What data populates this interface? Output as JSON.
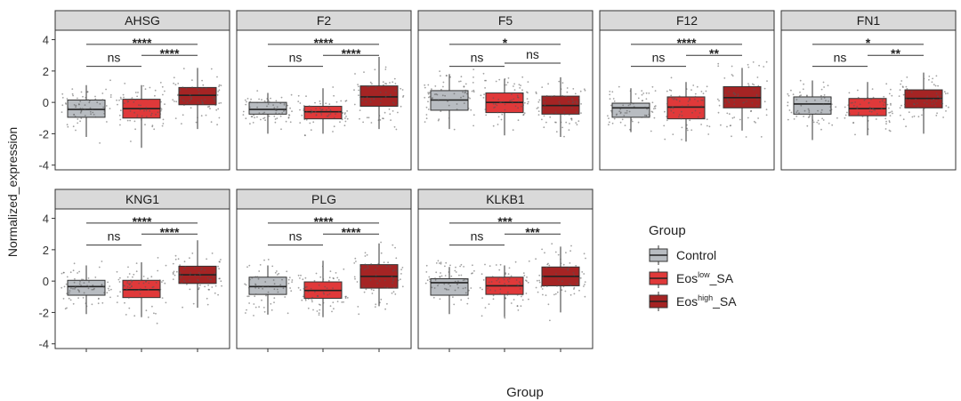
{
  "chart_data": {
    "type": "boxplot",
    "ylabel": "Normalized_expression",
    "xlabel": "Group",
    "ylim": [
      -4.3,
      4.6
    ],
    "yticks": [
      -4,
      -2,
      0,
      2,
      4
    ],
    "legend": {
      "title": "Group",
      "position": "right",
      "entries": [
        {
          "name": "Control",
          "base": "Control",
          "sup": "",
          "suffix": "",
          "color": "#b8bcc1"
        },
        {
          "name": "Eos_low_SA",
          "base": "Eos",
          "sup": "low",
          "suffix": "_SA",
          "color": "#e0393a"
        },
        {
          "name": "Eos_high_SA",
          "base": "Eos",
          "sup": "high",
          "suffix": "_SA",
          "color": "#a52424"
        }
      ]
    },
    "panels": [
      {
        "title": "AHSG",
        "boxes": [
          {
            "group": "Control",
            "q1": -0.95,
            "median": -0.45,
            "q3": 0.15,
            "wmin": -2.2,
            "wmax": 1.1
          },
          {
            "group": "Eos_low_SA",
            "q1": -1.0,
            "median": -0.4,
            "q3": 0.2,
            "wmin": -2.9,
            "wmax": 1.1
          },
          {
            "group": "Eos_high_SA",
            "q1": -0.15,
            "median": 0.45,
            "q3": 0.95,
            "wmin": -1.7,
            "wmax": 2.2
          }
        ],
        "signif": [
          {
            "label": "****",
            "from": 0,
            "to": 2,
            "y": 3.7
          },
          {
            "label": "ns",
            "from": 0,
            "to": 1,
            "y": 2.3
          },
          {
            "label": "****",
            "from": 1,
            "to": 2,
            "y": 3.0
          }
        ]
      },
      {
        "title": "F2",
        "boxes": [
          {
            "group": "Control",
            "q1": -0.75,
            "median": -0.45,
            "q3": 0.0,
            "wmin": -2.0,
            "wmax": 0.6
          },
          {
            "group": "Eos_low_SA",
            "q1": -1.05,
            "median": -0.6,
            "q3": -0.25,
            "wmin": -2.0,
            "wmax": 0.9
          },
          {
            "group": "Eos_high_SA",
            "q1": -0.25,
            "median": 0.35,
            "q3": 1.05,
            "wmin": -1.7,
            "wmax": 2.9
          }
        ],
        "signif": [
          {
            "label": "****",
            "from": 0,
            "to": 2,
            "y": 3.7
          },
          {
            "label": "ns",
            "from": 0,
            "to": 1,
            "y": 2.3
          },
          {
            "label": "****",
            "from": 1,
            "to": 2,
            "y": 3.0
          }
        ]
      },
      {
        "title": "F5",
        "boxes": [
          {
            "group": "Control",
            "q1": -0.5,
            "median": 0.15,
            "q3": 0.75,
            "wmin": -1.7,
            "wmax": 1.8
          },
          {
            "group": "Eos_low_SA",
            "q1": -0.65,
            "median": 0.0,
            "q3": 0.6,
            "wmin": -2.1,
            "wmax": 1.5
          },
          {
            "group": "Eos_high_SA",
            "q1": -0.75,
            "median": -0.2,
            "q3": 0.4,
            "wmin": -2.2,
            "wmax": 1.6
          }
        ],
        "signif": [
          {
            "label": "*",
            "from": 0,
            "to": 2,
            "y": 3.7
          },
          {
            "label": "ns",
            "from": 0,
            "to": 1,
            "y": 2.3
          },
          {
            "label": "ns",
            "from": 1,
            "to": 2,
            "y": 2.5
          }
        ]
      },
      {
        "title": "F12",
        "boxes": [
          {
            "group": "Control",
            "q1": -0.95,
            "median": -0.35,
            "q3": -0.05,
            "wmin": -1.9,
            "wmax": 0.9
          },
          {
            "group": "Eos_low_SA",
            "q1": -1.05,
            "median": -0.3,
            "q3": 0.35,
            "wmin": -2.5,
            "wmax": 1.3
          },
          {
            "group": "Eos_high_SA",
            "q1": -0.35,
            "median": 0.3,
            "q3": 1.0,
            "wmin": -1.8,
            "wmax": 2.2
          }
        ],
        "signif": [
          {
            "label": "****",
            "from": 0,
            "to": 2,
            "y": 3.7
          },
          {
            "label": "ns",
            "from": 0,
            "to": 1,
            "y": 2.3
          },
          {
            "label": "**",
            "from": 1,
            "to": 2,
            "y": 3.0
          }
        ]
      },
      {
        "title": "FN1",
        "boxes": [
          {
            "group": "Control",
            "q1": -0.75,
            "median": -0.1,
            "q3": 0.35,
            "wmin": -2.4,
            "wmax": 1.4
          },
          {
            "group": "Eos_low_SA",
            "q1": -0.85,
            "median": -0.4,
            "q3": 0.25,
            "wmin": -2.1,
            "wmax": 1.3
          },
          {
            "group": "Eos_high_SA",
            "q1": -0.35,
            "median": 0.25,
            "q3": 0.8,
            "wmin": -2.0,
            "wmax": 1.9
          }
        ],
        "signif": [
          {
            "label": "*",
            "from": 0,
            "to": 2,
            "y": 3.7
          },
          {
            "label": "ns",
            "from": 0,
            "to": 1,
            "y": 2.3
          },
          {
            "label": "**",
            "from": 1,
            "to": 2,
            "y": 3.0
          }
        ]
      },
      {
        "title": "KNG1",
        "boxes": [
          {
            "group": "Control",
            "q1": -0.9,
            "median": -0.35,
            "q3": 0.05,
            "wmin": -2.1,
            "wmax": 1.0
          },
          {
            "group": "Eos_low_SA",
            "q1": -1.05,
            "median": -0.55,
            "q3": 0.05,
            "wmin": -2.3,
            "wmax": 1.2
          },
          {
            "group": "Eos_high_SA",
            "q1": -0.15,
            "median": 0.4,
            "q3": 0.95,
            "wmin": -1.7,
            "wmax": 2.6
          }
        ],
        "signif": [
          {
            "label": "****",
            "from": 0,
            "to": 2,
            "y": 3.7
          },
          {
            "label": "ns",
            "from": 0,
            "to": 1,
            "y": 2.3
          },
          {
            "label": "****",
            "from": 1,
            "to": 2,
            "y": 3.0
          }
        ]
      },
      {
        "title": "PLG",
        "boxes": [
          {
            "group": "Control",
            "q1": -0.85,
            "median": -0.35,
            "q3": 0.25,
            "wmin": -2.1,
            "wmax": 1.0
          },
          {
            "group": "Eos_low_SA",
            "q1": -1.1,
            "median": -0.6,
            "q3": -0.05,
            "wmin": -2.3,
            "wmax": 1.3
          },
          {
            "group": "Eos_high_SA",
            "q1": -0.45,
            "median": 0.3,
            "q3": 1.05,
            "wmin": -1.6,
            "wmax": 2.4
          }
        ],
        "signif": [
          {
            "label": "****",
            "from": 0,
            "to": 2,
            "y": 3.7
          },
          {
            "label": "ns",
            "from": 0,
            "to": 1,
            "y": 2.3
          },
          {
            "label": "****",
            "from": 1,
            "to": 2,
            "y": 3.0
          }
        ]
      },
      {
        "title": "KLKB1",
        "boxes": [
          {
            "group": "Control",
            "q1": -0.9,
            "median": -0.1,
            "q3": 0.15,
            "wmin": -2.1,
            "wmax": 0.9
          },
          {
            "group": "Eos_low_SA",
            "q1": -0.85,
            "median": -0.3,
            "q3": 0.25,
            "wmin": -2.3,
            "wmax": 1.0
          },
          {
            "group": "Eos_high_SA",
            "q1": -0.3,
            "median": 0.3,
            "q3": 0.9,
            "wmin": -2.0,
            "wmax": 2.2
          }
        ],
        "signif": [
          {
            "label": "***",
            "from": 0,
            "to": 2,
            "y": 3.7
          },
          {
            "label": "ns",
            "from": 0,
            "to": 1,
            "y": 2.3
          },
          {
            "label": "***",
            "from": 1,
            "to": 2,
            "y": 3.0
          }
        ]
      }
    ]
  }
}
